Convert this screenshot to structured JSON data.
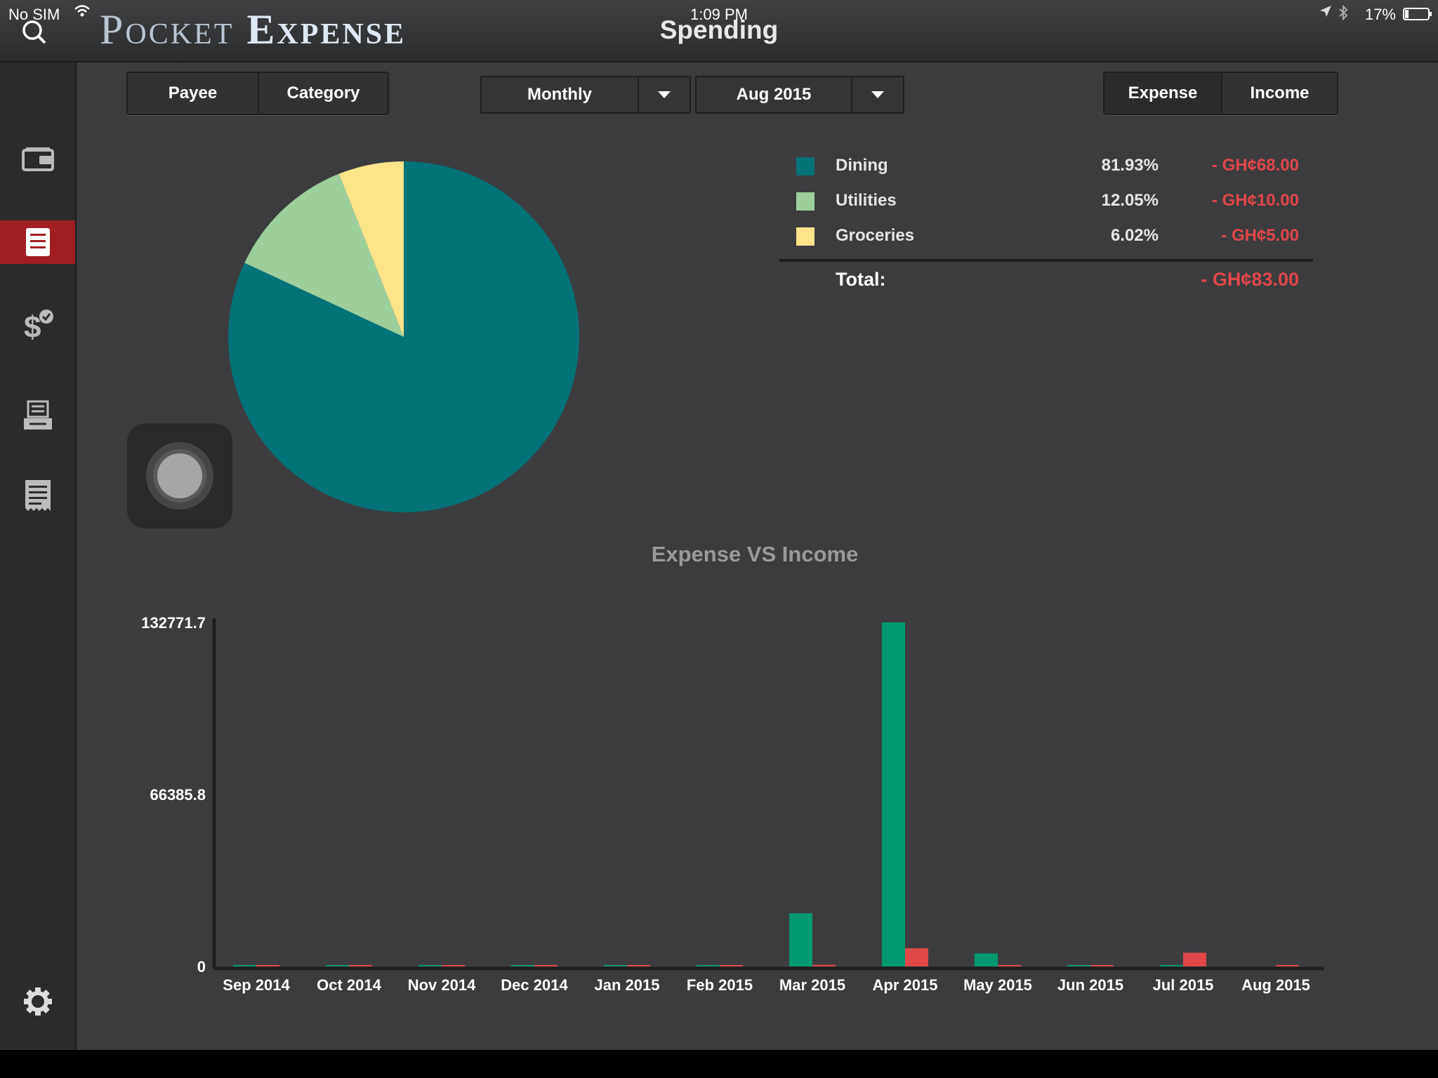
{
  "status_bar": {
    "carrier": "No SIM",
    "time": "1:09 PM",
    "battery": "17%"
  },
  "header": {
    "logo_word1": "Pocket",
    "logo_word2": "Expense",
    "title": "Spending"
  },
  "sidebar": {
    "items": [
      {
        "icon": "wallet-icon",
        "active": false
      },
      {
        "icon": "report-icon",
        "active": true
      },
      {
        "icon": "dollar-check-icon",
        "active": false
      },
      {
        "icon": "bills-icon",
        "active": false
      },
      {
        "icon": "receipt-icon",
        "active": false
      }
    ],
    "settings_icon": "gear-icon"
  },
  "filters": {
    "group_by": {
      "options": [
        "Payee",
        "Category"
      ]
    },
    "period": {
      "value": "Monthly"
    },
    "month": {
      "value": "Aug 2015"
    },
    "type": {
      "options": [
        "Expense",
        "Income"
      ]
    }
  },
  "legend": {
    "rows": [
      {
        "name": "Dining",
        "percent": "81.93%",
        "amount": "- GH¢68.00",
        "color": "#037378"
      },
      {
        "name": "Utilities",
        "percent": "12.05%",
        "amount": "- GH¢10.00",
        "color": "#9ccf9c"
      },
      {
        "name": "Groceries",
        "percent": "6.02%",
        "amount": "- GH¢5.00",
        "color": "#fde38a"
      }
    ],
    "total_label": "Total:",
    "total_amount": "- GH¢83.00"
  },
  "colors": {
    "accent_active": "#a11d24",
    "expense_negative": "#e2474b",
    "bar_green": "#019a70",
    "bar_red": "#e0474b"
  },
  "chart_data": [
    {
      "type": "pie",
      "labels": [
        "Dining",
        "Utilities",
        "Groceries"
      ],
      "values": [
        81.93,
        12.05,
        6.02
      ],
      "colors": [
        "#037378",
        "#9ccf9c",
        "#fde38a"
      ]
    },
    {
      "type": "bar",
      "title": "Expense VS Income",
      "categories": [
        "Sep 2014",
        "Oct 2014",
        "Nov 2014",
        "Dec 2014",
        "Jan 2015",
        "Feb 2015",
        "Mar 2015",
        "Apr 2015",
        "May 2015",
        "Jun 2015",
        "Jul 2015",
        "Aug 2015"
      ],
      "series": [
        {
          "color": "#019a70",
          "values": [
            150,
            150,
            150,
            150,
            150,
            150,
            20500,
            132771.7,
            5000,
            150,
            150,
            0
          ]
        },
        {
          "color": "#e0474b",
          "values": [
            150,
            150,
            150,
            150,
            150,
            150,
            600,
            7000,
            300,
            150,
            5300,
            83
          ]
        }
      ],
      "y_ticks": [
        "132771.7",
        "66385.8",
        "0"
      ],
      "ylim": [
        0,
        132771.7
      ]
    }
  ]
}
